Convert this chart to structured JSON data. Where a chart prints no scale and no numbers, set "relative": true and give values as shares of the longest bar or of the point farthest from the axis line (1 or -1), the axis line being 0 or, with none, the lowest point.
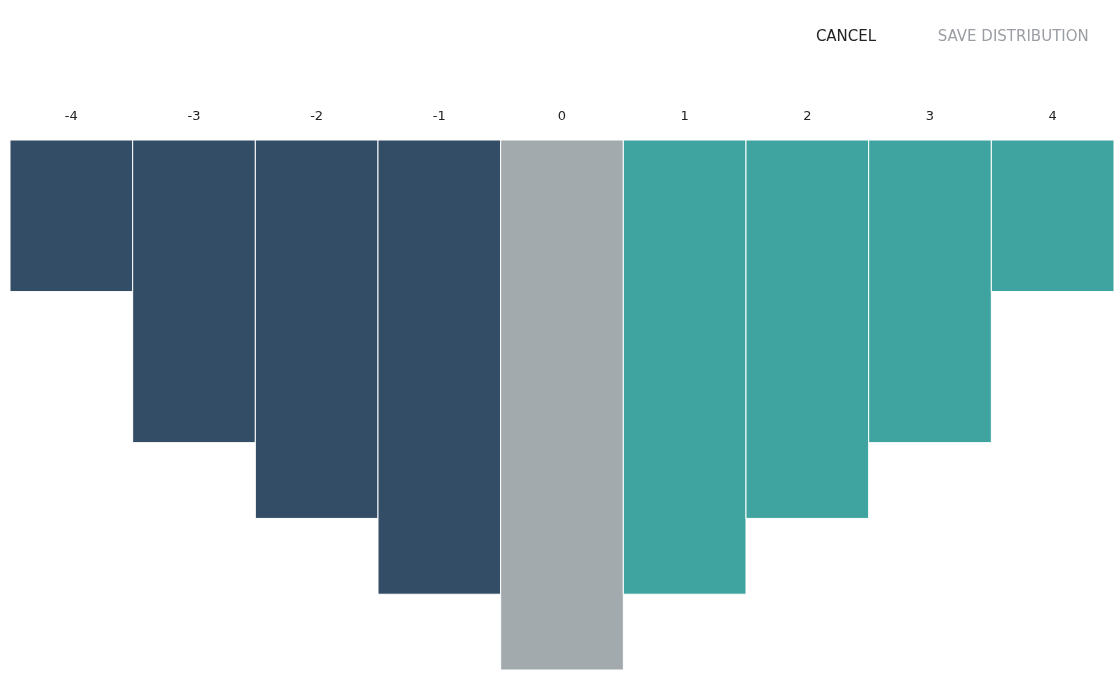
{
  "chart_data": {
    "type": "bar",
    "relative": true,
    "categories": [
      "-4",
      "-3",
      "-2",
      "-1",
      "0",
      "1",
      "2",
      "3",
      "4"
    ],
    "values": [
      -0.286,
      -0.571,
      -0.714,
      -0.857,
      -1,
      -0.857,
      -0.714,
      -0.571,
      -0.286
    ],
    "colors": [
      "#324d65",
      "#324d65",
      "#324d65",
      "#324d65",
      "#a3aaad",
      "#3fa39f",
      "#3fa39f",
      "#3fa39f",
      "#3fa39f"
    ],
    "annotations": [
      "CANCEL",
      "SAVE DISTRIBUTION"
    ],
    "grid": false
  }
}
